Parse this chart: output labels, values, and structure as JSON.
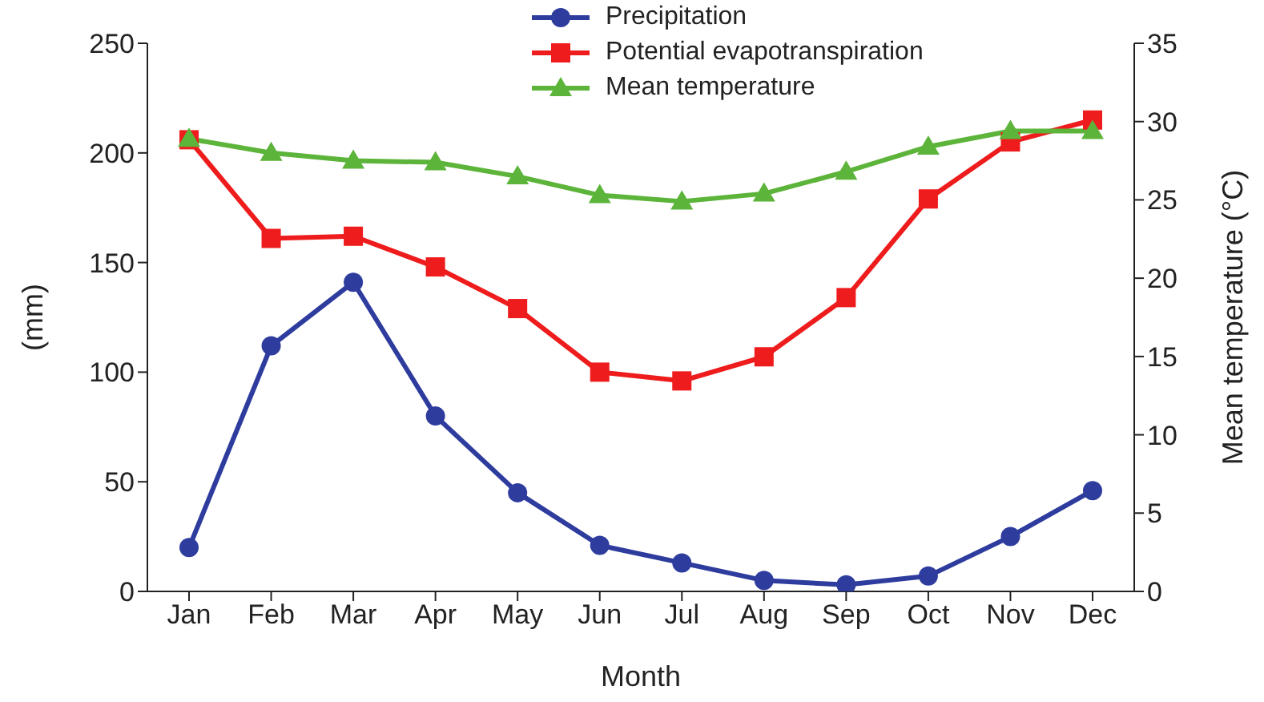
{
  "chart_data": {
    "type": "line",
    "xlabel": "Month",
    "ylabel": "(mm)",
    "y2label": "Mean temperature (°C)",
    "categories": [
      "Jan",
      "Feb",
      "Mar",
      "Apr",
      "May",
      "Jun",
      "Jul",
      "Aug",
      "Sep",
      "Oct",
      "Nov",
      "Dec"
    ],
    "series": [
      {
        "name": "Precipitation",
        "color": "#2e3c9e",
        "marker": "circle",
        "values": [
          20,
          112,
          141,
          80,
          45,
          21,
          13,
          5,
          3,
          7,
          25,
          46
        ]
      },
      {
        "name": "Potential evapotranspiration",
        "color": "#ee1c1c",
        "marker": "square",
        "values": [
          206,
          161,
          162,
          148,
          129,
          100,
          96,
          107,
          134,
          179,
          205,
          215
        ]
      },
      {
        "name": "Mean temperature",
        "color": "#5db43a",
        "marker": "triangle",
        "axis": "y2",
        "values": [
          28.9,
          28.0,
          27.5,
          27.4,
          26.5,
          25.3,
          24.9,
          25.4,
          26.8,
          28.4,
          29.4,
          29.4
        ]
      }
    ],
    "ylim": [
      0,
      250
    ],
    "yticks": [
      0,
      50,
      100,
      150,
      200,
      250
    ],
    "y2lim": [
      0,
      35
    ],
    "y2ticks": [
      0,
      5,
      10,
      15,
      20,
      25,
      30,
      35
    ],
    "legend": "top",
    "grid": false,
    "line_style": "solid"
  }
}
